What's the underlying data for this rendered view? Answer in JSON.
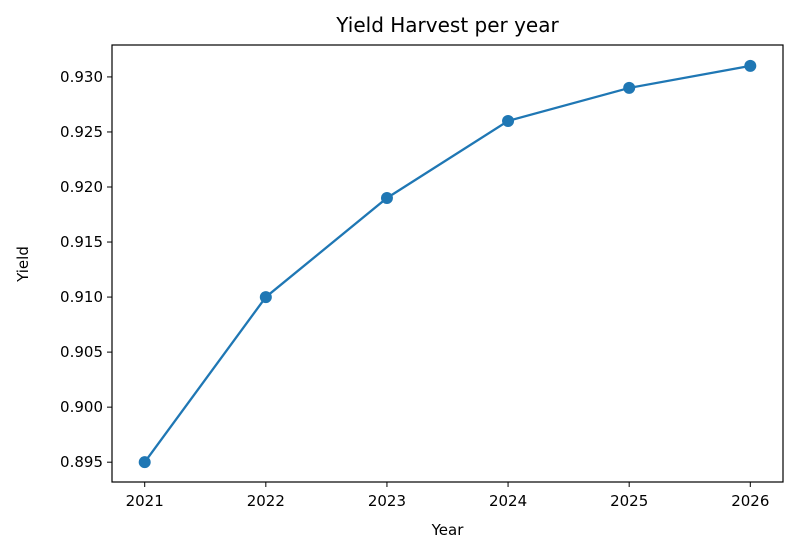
{
  "chart_data": {
    "type": "line",
    "title": "Yield Harvest per year",
    "xlabel": "Year",
    "ylabel": "Yield",
    "x": [
      "2021",
      "2022",
      "2023",
      "2024",
      "2025",
      "2026"
    ],
    "series": [
      {
        "values": [
          0.895,
          0.91,
          0.919,
          0.926,
          0.929,
          0.931
        ],
        "color": "#1f77b4",
        "marker": "circle"
      }
    ],
    "xlim": [
      2020.73,
      2026.27
    ],
    "ylim": [
      0.8932,
      0.9329
    ],
    "yticks": [
      "0.895",
      "0.900",
      "0.905",
      "0.910",
      "0.915",
      "0.920",
      "0.925",
      "0.930"
    ],
    "grid": false,
    "legend": "none"
  }
}
